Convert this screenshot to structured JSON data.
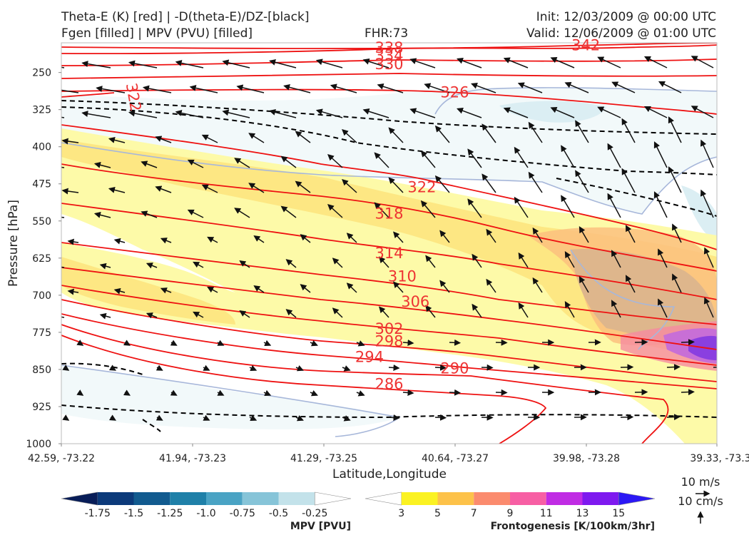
{
  "header": {
    "line1_left": "Theta-E (K) [red] | -D(theta-E)/DZ-[black]",
    "line2_left": "Fgen [filled] | MPV (PVU) [filled]",
    "fhr": "FHR:73",
    "init": "Init: 12/03/2009 @ 00:00 UTC",
    "valid": "Valid: 12/06/2009 @ 01:00 UTC"
  },
  "chart_data": {
    "type": "cross-section",
    "xlabel": "Latitude,Longitude",
    "ylabel": "Pressure [hPa]",
    "x_ticks": [
      "42.59, -73.22",
      "41.94, -73.23",
      "41.29, -73.25",
      "40.64, -73.27",
      "39.98, -73.28",
      "39.33, -73.3"
    ],
    "y_ticks": [
      250,
      325,
      400,
      475,
      550,
      625,
      700,
      775,
      850,
      925,
      1000
    ],
    "ylim": [
      190,
      1000
    ],
    "y_inverted": true,
    "theta_e_contour_labels": [
      {
        "value": "342",
        "x": 0.8,
        "p": 195
      },
      {
        "value": "338",
        "x": 0.5,
        "p": 200
      },
      {
        "value": "334",
        "x": 0.5,
        "p": 216
      },
      {
        "value": "330",
        "x": 0.5,
        "p": 233
      },
      {
        "value": "326",
        "x": 0.6,
        "p": 290
      },
      {
        "value": "322",
        "x": 0.11,
        "p": 300
      },
      {
        "value": "322",
        "x": 0.55,
        "p": 482
      },
      {
        "value": "318",
        "x": 0.5,
        "p": 535
      },
      {
        "value": "314",
        "x": 0.5,
        "p": 615
      },
      {
        "value": "310",
        "x": 0.52,
        "p": 662
      },
      {
        "value": "306",
        "x": 0.54,
        "p": 713
      },
      {
        "value": "302",
        "x": 0.5,
        "p": 768
      },
      {
        "value": "298",
        "x": 0.5,
        "p": 793
      },
      {
        "value": "294",
        "x": 0.47,
        "p": 825
      },
      {
        "value": "290",
        "x": 0.6,
        "p": 848
      },
      {
        "value": "286",
        "x": 0.5,
        "p": 880
      }
    ],
    "wind_reference": {
      "horizontal": "10 m/s",
      "vertical": "10 cm/s"
    },
    "colorbars": [
      {
        "label": "MPV [PVU]",
        "ticks": [
          "-1.75",
          "-1.5",
          "-1.25",
          "-1.0",
          "-0.75",
          "-0.5",
          "-0.25"
        ],
        "colors": [
          "#081d58",
          "#0c3a7a",
          "#125b8f",
          "#1f80a8",
          "#4aa3c4",
          "#86c4d8",
          "#c3e2ea",
          "#ffffff"
        ]
      },
      {
        "label": "Frontogenesis [K/100km/3hr]",
        "ticks": [
          "3",
          "5",
          "7",
          "9",
          "11",
          "13",
          "15"
        ],
        "colors": [
          "#ffffff",
          "#fbf222",
          "#fdc24a",
          "#fb8b6e",
          "#f75fa4",
          "#c02ce4",
          "#7e19ef",
          "#2b18f5"
        ]
      }
    ]
  }
}
